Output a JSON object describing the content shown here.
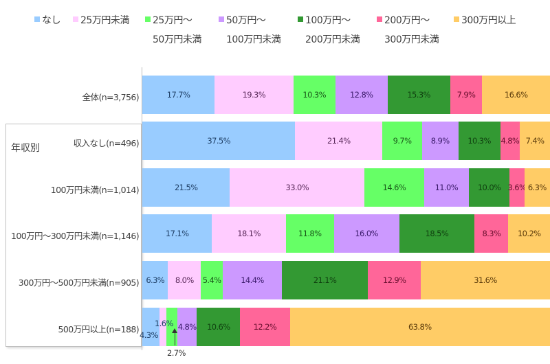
{
  "legend": [
    {
      "label1": "なし",
      "label2": "",
      "color": "#99CCFF"
    },
    {
      "label1": "25万円未満",
      "label2": "",
      "color": "#FFCCFF"
    },
    {
      "label1": "25万円～",
      "label2": "50万円未満",
      "color": "#66FF66"
    },
    {
      "label1": "50万円～",
      "label2": "100万円未満",
      "color": "#CC99FF"
    },
    {
      "label1": "100万円～",
      "label2": "200万円未満",
      "color": "#339933"
    },
    {
      "label1": "200万円～",
      "label2": "300万円未満",
      "color": "#FF6699"
    },
    {
      "label1": "300万円以上",
      "label2": "",
      "color": "#FFCC66"
    }
  ],
  "group_label": "年収別",
  "rows": [
    {
      "label": "全体(n=3,756)",
      "values": [
        17.7,
        19.3,
        10.3,
        12.8,
        15.3,
        7.9,
        16.6
      ],
      "texts": [
        "17.7%",
        "19.3%",
        "10.3%",
        "12.8%",
        "15.3%",
        "7.9%",
        "16.6%"
      ]
    },
    {
      "label": "収入なし(n=496)",
      "values": [
        37.5,
        21.4,
        9.7,
        8.9,
        10.3,
        4.8,
        7.4
      ],
      "texts": [
        "37.5%",
        "21.4%",
        "9.7%",
        "8.9%",
        "10.3%",
        "4.8%",
        "7.4%"
      ]
    },
    {
      "label": "100万円未満(n=1,014)",
      "values": [
        21.5,
        33.0,
        14.6,
        11.0,
        10.0,
        3.6,
        6.3
      ],
      "texts": [
        "21.5%",
        "33.0%",
        "14.6%",
        "11.0%",
        "10.0%",
        "3.6%",
        "6.3%"
      ]
    },
    {
      "label": "100万円～300万円未満(n=1,146)",
      "values": [
        17.1,
        18.1,
        11.8,
        16.0,
        18.5,
        8.3,
        10.2
      ],
      "texts": [
        "17.1%",
        "18.1%",
        "11.8%",
        "16.0%",
        "18.5%",
        "8.3%",
        "10.2%"
      ]
    },
    {
      "label": "300万円～500万円未満(n=905)",
      "values": [
        6.3,
        8.0,
        5.4,
        14.4,
        21.1,
        12.9,
        31.6
      ],
      "texts": [
        "6.3%",
        "8.0%",
        "5.4%",
        "14.4%",
        "21.1%",
        "12.9%",
        "31.6%"
      ]
    },
    {
      "label": "500万円以上(n=188)",
      "values": [
        4.3,
        1.6,
        2.7,
        4.8,
        10.6,
        12.2,
        63.8
      ],
      "texts": [
        "",
        "",
        "",
        "4.8%",
        "10.6%",
        "12.2%",
        "63.8%"
      ]
    }
  ],
  "annotations": {
    "last_row_a": "4.3%",
    "last_row_b": "1.6%",
    "last_row_c": "2.7%"
  },
  "chart_data": {
    "type": "bar",
    "orientation": "horizontal",
    "stacked": "100%",
    "title": "",
    "xlabel": "",
    "ylabel": "",
    "categories": [
      "全体(n=3,756)",
      "収入なし(n=496)",
      "100万円未満(n=1,014)",
      "100万円～300万円未満(n=1,146)",
      "300万円～500万円未満(n=905)",
      "500万円以上(n=188)"
    ],
    "group_annotation": {
      "label": "年収別",
      "applies_to": [
        "収入なし(n=496)",
        "100万円未満(n=1,014)",
        "100万円～300万円未満(n=1,146)",
        "300万円～500万円未満(n=905)",
        "500万円以上(n=188)"
      ]
    },
    "series": [
      {
        "name": "なし",
        "color": "#99CCFF",
        "values": [
          17.7,
          37.5,
          21.5,
          17.1,
          6.3,
          4.3
        ]
      },
      {
        "name": "25万円未満",
        "color": "#FFCCFF",
        "values": [
          19.3,
          21.4,
          33.0,
          18.1,
          8.0,
          1.6
        ]
      },
      {
        "name": "25万円～50万円未満",
        "color": "#66FF66",
        "values": [
          10.3,
          9.7,
          14.6,
          11.8,
          5.4,
          2.7
        ]
      },
      {
        "name": "50万円～100万円未満",
        "color": "#CC99FF",
        "values": [
          12.8,
          8.9,
          11.0,
          16.0,
          14.4,
          4.8
        ]
      },
      {
        "name": "100万円～200万円未満",
        "color": "#339933",
        "values": [
          15.3,
          10.3,
          10.0,
          18.5,
          21.1,
          10.6
        ]
      },
      {
        "name": "200万円～300万円未満",
        "color": "#FF6699",
        "values": [
          7.9,
          4.8,
          3.6,
          8.3,
          12.9,
          12.2
        ]
      },
      {
        "name": "300万円以上",
        "color": "#FFCC66",
        "values": [
          16.6,
          7.4,
          6.3,
          10.2,
          31.6,
          63.8
        ]
      }
    ],
    "xlim": [
      0,
      100
    ],
    "grid": false,
    "data_labels": true,
    "legend_position": "top"
  }
}
